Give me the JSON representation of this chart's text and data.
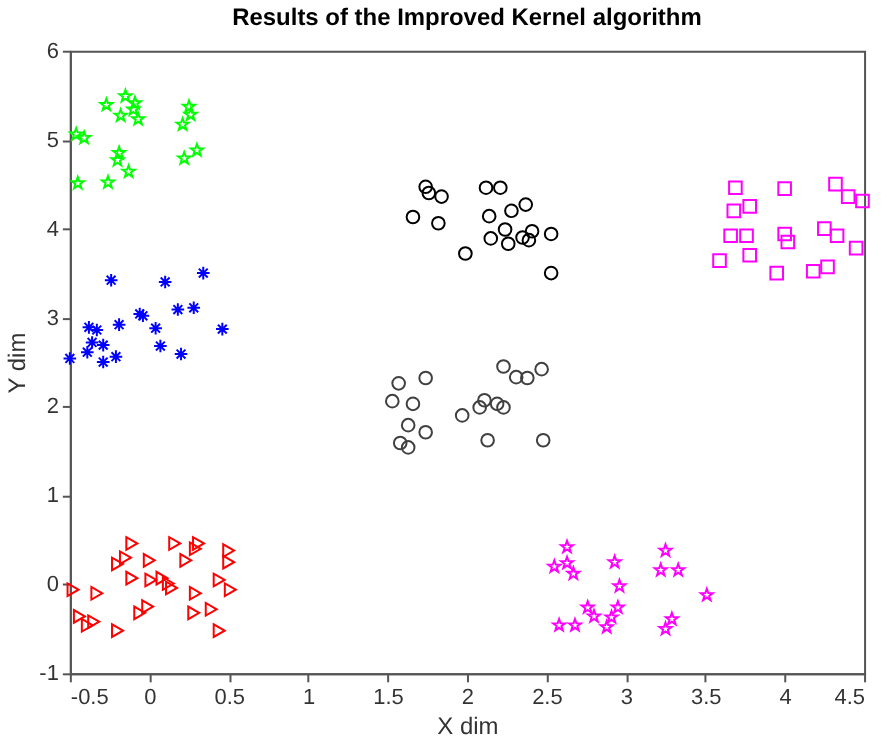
{
  "chart_data": {
    "type": "scatter",
    "title": "Results of the Improved Kernel algorithm",
    "xlabel": "X dim",
    "ylabel": "Y dim",
    "xlim": [
      -0.5,
      4.5
    ],
    "ylim": [
      -1,
      6
    ],
    "xticks": [
      -0.5,
      0,
      0.5,
      1,
      1.5,
      2,
      2.5,
      3,
      3.5,
      4,
      4.5
    ],
    "yticks": [
      -1,
      0,
      1,
      2,
      3,
      4,
      5,
      6
    ],
    "grid": false,
    "series": [
      {
        "color": "#00ff00",
        "marker": "star",
        "x": [
          -0.27,
          -0.15,
          -0.09,
          -0.1,
          -0.18,
          -0.07,
          0.25,
          0.26,
          0.21,
          -0.46,
          -0.41,
          -0.19,
          -0.2,
          -0.13,
          0.22,
          0.3,
          -0.45,
          -0.26
        ],
        "values": [
          5.39,
          5.49,
          5.41,
          5.34,
          5.27,
          5.23,
          5.37,
          5.28,
          5.17,
          5.06,
          5.02,
          4.85,
          4.77,
          4.64,
          4.79,
          4.88,
          4.51,
          4.52
        ]
      },
      {
        "color": "#0000ff",
        "marker": "cross",
        "x": [
          -0.24,
          0.1,
          0.34,
          -0.06,
          0.18,
          0.28,
          -0.38,
          -0.33,
          -0.19,
          0.04,
          0.46,
          -0.36,
          -0.29,
          -0.5,
          -0.39,
          -0.29,
          -0.21,
          0.07,
          0.2,
          -0.04
        ],
        "values": [
          3.42,
          3.4,
          3.5,
          3.04,
          3.09,
          3.11,
          2.89,
          2.86,
          2.92,
          2.88,
          2.87,
          2.72,
          2.69,
          2.54,
          2.61,
          2.5,
          2.56,
          2.68,
          2.59,
          3.02
        ]
      },
      {
        "color": "#000000",
        "marker": "circle",
        "x": [
          1.74,
          1.76,
          1.84,
          2.12,
          2.21,
          1.66,
          1.82,
          2.14,
          2.28,
          2.37,
          2.24,
          2.41,
          2.53,
          2.15,
          2.26,
          2.35,
          2.39,
          1.99,
          2.53
        ],
        "values": [
          4.47,
          4.4,
          4.36,
          4.46,
          4.46,
          4.13,
          4.06,
          4.14,
          4.2,
          4.27,
          3.99,
          3.97,
          3.94,
          3.89,
          3.83,
          3.9,
          3.87,
          3.72,
          3.5
        ]
      },
      {
        "color": "#404040",
        "marker": "circle",
        "x": [
          1.57,
          1.74,
          1.53,
          1.66,
          1.63,
          1.74,
          1.58,
          1.63,
          1.97,
          2.08,
          2.11,
          2.19,
          2.23,
          2.23,
          2.31,
          2.38,
          2.47,
          2.13,
          2.48
        ],
        "values": [
          2.26,
          2.32,
          2.06,
          2.03,
          1.79,
          1.71,
          1.59,
          1.54,
          1.9,
          1.99,
          2.07,
          2.03,
          1.99,
          2.45,
          2.33,
          2.32,
          2.42,
          1.62,
          1.62
        ]
      },
      {
        "color": "#ff00ff",
        "marker": "square",
        "x": [
          3.69,
          4.0,
          4.32,
          4.4,
          4.49,
          3.68,
          3.78,
          3.66,
          3.76,
          4.0,
          4.02,
          4.25,
          4.33,
          4.45,
          3.59,
          3.78,
          3.95,
          4.18,
          4.27
        ],
        "values": [
          4.46,
          4.45,
          4.5,
          4.36,
          4.31,
          4.2,
          4.25,
          3.92,
          3.92,
          3.94,
          3.85,
          4.0,
          3.92,
          3.78,
          3.64,
          3.7,
          3.5,
          3.52,
          3.57
        ]
      },
      {
        "color": "#ff0000",
        "marker": "triangle",
        "x": [
          -0.11,
          0.16,
          0.31,
          0.29,
          0.5,
          0.5,
          0.23,
          -0.2,
          -0.15,
          0.0,
          -0.11,
          0.01,
          0.08,
          0.12,
          0.14,
          0.44,
          0.51,
          -0.48,
          -0.33,
          0.29,
          0.39,
          0.28,
          -0.44,
          -0.39,
          -0.35,
          -0.2,
          -0.06,
          -0.01,
          0.44
        ],
        "values": [
          0.46,
          0.46,
          0.46,
          0.4,
          0.38,
          0.25,
          0.27,
          0.23,
          0.3,
          0.27,
          0.07,
          0.05,
          0.07,
          0.01,
          -0.04,
          0.05,
          -0.06,
          -0.06,
          -0.1,
          -0.1,
          -0.28,
          -0.32,
          -0.36,
          -0.46,
          -0.42,
          -0.52,
          -0.32,
          -0.25,
          -0.52
        ]
      },
      {
        "color": "#ff00ff",
        "marker": "star",
        "x": [
          2.63,
          2.55,
          2.63,
          2.67,
          2.93,
          2.96,
          3.25,
          3.22,
          3.33,
          3.51,
          2.76,
          2.8,
          2.95,
          2.91,
          2.88,
          2.58,
          2.68,
          3.29,
          3.25
        ],
        "values": [
          0.42,
          0.2,
          0.24,
          0.12,
          0.25,
          -0.02,
          0.38,
          0.16,
          0.16,
          -0.12,
          -0.26,
          -0.36,
          -0.26,
          -0.37,
          -0.48,
          -0.46,
          -0.46,
          -0.39,
          -0.5
        ]
      }
    ]
  }
}
